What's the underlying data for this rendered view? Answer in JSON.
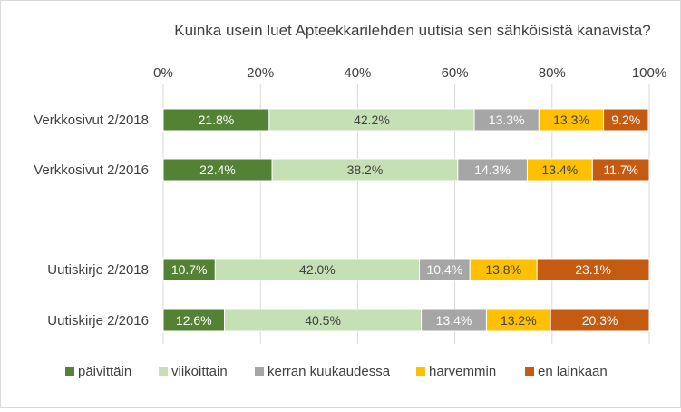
{
  "chart_data": {
    "type": "bar",
    "orientation": "horizontal",
    "stacked": true,
    "title": "Kuinka usein luet Apteekkarilehden uutisia sen sähköisistä kanavista?",
    "categories": [
      "Verkkosivut 2/2018",
      "Verkkosivut 2/2016",
      "Uutiskirje 2/2018",
      "Uutiskirje 2/2016"
    ],
    "series": [
      {
        "name": "päivittäin",
        "color": "#548235",
        "label_color": "#ffffff",
        "values": [
          21.8,
          22.4,
          10.7,
          12.6
        ]
      },
      {
        "name": "viikoittain",
        "color": "#c5e0b4",
        "label_color": "#404040",
        "values": [
          42.2,
          38.2,
          42.0,
          40.5
        ]
      },
      {
        "name": "kerran kuukaudessa",
        "color": "#a6a6a6",
        "label_color": "#ffffff",
        "values": [
          13.3,
          14.3,
          10.4,
          13.4
        ]
      },
      {
        "name": "harvemmin",
        "color": "#ffc000",
        "label_color": "#404040",
        "values": [
          13.3,
          13.4,
          13.8,
          13.2
        ]
      },
      {
        "name": "en lainkaan",
        "color": "#c55a11",
        "label_color": "#ffffff",
        "values": [
          9.2,
          11.7,
          23.1,
          20.3
        ]
      }
    ],
    "data_labels": [
      [
        "21.8%",
        "42.2%",
        "13.3%",
        "13.3%",
        "9.2%"
      ],
      [
        "22.4%",
        "38.2%",
        "14.3%",
        "13.4%",
        "11.7%"
      ],
      [
        "10.7%",
        "42.0%",
        "10.4%",
        "13.8%",
        "23.1%"
      ],
      [
        "12.6%",
        "40.5%",
        "13.4%",
        "13.2%",
        "20.3%"
      ]
    ],
    "xlim": [
      0,
      100
    ],
    "xticks": [
      "0%",
      "20%",
      "40%",
      "60%",
      "80%",
      "100%"
    ],
    "grid": true,
    "legend_position": "bottom"
  }
}
